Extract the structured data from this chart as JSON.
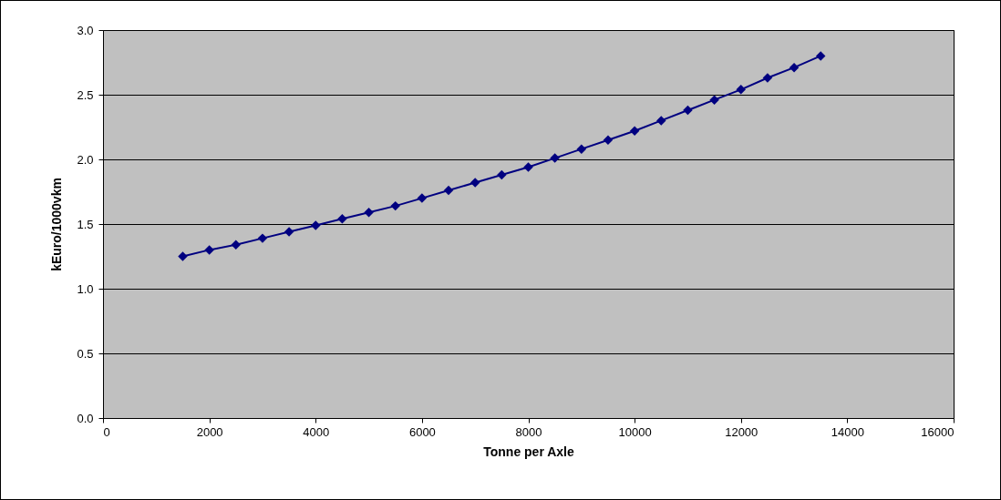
{
  "chart_data": {
    "type": "line",
    "xlabel": "Tonne per Axle",
    "ylabel": "kEuro/1000vkm",
    "x": [
      1500,
      2000,
      2500,
      3000,
      3500,
      4000,
      4500,
      5000,
      5500,
      6000,
      6500,
      7000,
      7500,
      8000,
      8500,
      9000,
      9500,
      10000,
      10500,
      11000,
      11500,
      12000,
      12500,
      13000,
      13500
    ],
    "series": [
      {
        "color": "#000080",
        "values": [
          1.25,
          1.3,
          1.34,
          1.39,
          1.44,
          1.49,
          1.54,
          1.59,
          1.64,
          1.7,
          1.76,
          1.82,
          1.88,
          1.94,
          2.01,
          2.08,
          2.15,
          2.22,
          2.3,
          2.38,
          2.46,
          2.54,
          2.63,
          2.71,
          2.8
        ]
      }
    ],
    "xlim": [
      0,
      16000
    ],
    "xticks": [
      0,
      2000,
      4000,
      6000,
      8000,
      10000,
      12000,
      14000,
      16000
    ],
    "ylim": [
      0,
      3.0
    ],
    "yticks": [
      {
        "value": 0,
        "label": "0.0"
      },
      {
        "value": 0.5,
        "label": "0.5"
      },
      {
        "value": 1,
        "label": "1.0"
      },
      {
        "value": 1.5,
        "label": "1.5"
      },
      {
        "value": 2,
        "label": "2.0"
      },
      {
        "value": 2.5,
        "label": "2.5"
      },
      {
        "value": 3,
        "label": "3.0"
      }
    ],
    "grid": "y",
    "marker": "diamond",
    "line_style": "solid"
  }
}
